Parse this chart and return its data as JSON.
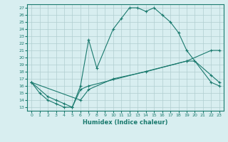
{
  "line1_x": [
    0,
    1,
    2,
    3,
    4,
    5,
    6,
    7,
    8,
    10,
    11,
    12,
    13,
    14,
    15,
    16,
    17,
    18,
    19,
    22,
    23
  ],
  "line1_y": [
    16.5,
    15,
    14,
    13.5,
    13,
    13,
    16,
    22.5,
    18.5,
    24,
    25.5,
    27,
    27,
    26.5,
    27,
    26,
    25,
    23.5,
    21,
    16.5,
    16
  ],
  "line2_x": [
    0,
    2,
    3,
    4,
    5,
    6,
    7,
    19,
    20,
    22,
    23
  ],
  "line2_y": [
    16.5,
    14.5,
    14,
    13.5,
    13,
    15.5,
    16,
    19.5,
    19.5,
    17.5,
    16.5
  ],
  "line3_x": [
    0,
    6,
    7,
    10,
    14,
    19,
    22,
    23
  ],
  "line3_y": [
    16.5,
    14,
    15.5,
    17,
    18,
    19.5,
    21,
    21
  ],
  "color": "#1a7a6e",
  "bg_color": "#d8eef0",
  "grid_color": "#b0cdd0",
  "xlabel": "Humidex (Indice chaleur)",
  "ylim": [
    13,
    27
  ],
  "xlim": [
    0,
    23
  ],
  "yticks": [
    13,
    14,
    15,
    16,
    17,
    18,
    19,
    20,
    21,
    22,
    23,
    24,
    25,
    26,
    27
  ],
  "xticks": [
    0,
    1,
    2,
    3,
    4,
    5,
    6,
    7,
    8,
    9,
    10,
    11,
    12,
    13,
    14,
    15,
    16,
    17,
    18,
    19,
    20,
    21,
    22,
    23
  ]
}
